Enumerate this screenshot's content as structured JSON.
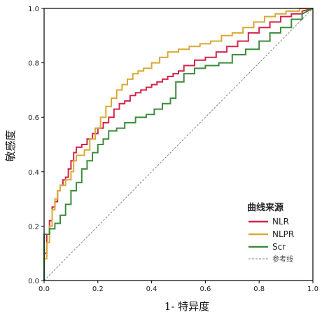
{
  "chart_data": {
    "type": "line",
    "title": "",
    "xlabel": "1- 特异度",
    "ylabel": "敏感度",
    "xlim": [
      0,
      1
    ],
    "ylim": [
      0,
      1
    ],
    "xticks": [
      "0.0",
      "0.2",
      "0.4",
      "0.6",
      "0.8",
      "1.0"
    ],
    "yticks": [
      "0.0",
      "0.2",
      "0.4",
      "0.6",
      "0.8",
      "1.0"
    ],
    "grid": false,
    "legend": {
      "title": "曲线来源",
      "placement": "bottom-right",
      "entries": [
        "NLR",
        "NLPR",
        "Scr",
        "参考线"
      ]
    },
    "series": [
      {
        "name": "NLR",
        "color": "#d4244a",
        "x": [
          0,
          0,
          0.01,
          0.01,
          0.02,
          0.02,
          0.03,
          0.03,
          0.04,
          0.04,
          0.05,
          0.05,
          0.06,
          0.06,
          0.07,
          0.07,
          0.08,
          0.08,
          0.09,
          0.09,
          0.1,
          0.1,
          0.11,
          0.11,
          0.12,
          0.12,
          0.14,
          0.14,
          0.16,
          0.16,
          0.18,
          0.18,
          0.2,
          0.2,
          0.22,
          0.22,
          0.24,
          0.24,
          0.26,
          0.26,
          0.28,
          0.28,
          0.3,
          0.3,
          0.32,
          0.32,
          0.34,
          0.34,
          0.36,
          0.36,
          0.38,
          0.38,
          0.4,
          0.4,
          0.42,
          0.42,
          0.44,
          0.44,
          0.46,
          0.46,
          0.48,
          0.48,
          0.5,
          0.5,
          0.52,
          0.52,
          0.56,
          0.56,
          0.6,
          0.6,
          0.64,
          0.64,
          0.68,
          0.68,
          0.72,
          0.72,
          0.76,
          0.76,
          0.8,
          0.8,
          0.84,
          0.84,
          0.88,
          0.88,
          0.92,
          0.92,
          0.96,
          0.96,
          1.0
        ],
        "y": [
          0,
          0.1,
          0.1,
          0.17,
          0.17,
          0.22,
          0.22,
          0.27,
          0.27,
          0.29,
          0.29,
          0.33,
          0.33,
          0.35,
          0.35,
          0.37,
          0.37,
          0.38,
          0.38,
          0.41,
          0.41,
          0.44,
          0.44,
          0.47,
          0.47,
          0.49,
          0.49,
          0.5,
          0.5,
          0.52,
          0.52,
          0.54,
          0.54,
          0.56,
          0.56,
          0.58,
          0.58,
          0.6,
          0.6,
          0.63,
          0.63,
          0.65,
          0.65,
          0.66,
          0.66,
          0.68,
          0.68,
          0.69,
          0.69,
          0.7,
          0.7,
          0.71,
          0.71,
          0.72,
          0.72,
          0.73,
          0.73,
          0.74,
          0.74,
          0.75,
          0.75,
          0.76,
          0.76,
          0.77,
          0.77,
          0.79,
          0.79,
          0.81,
          0.81,
          0.82,
          0.82,
          0.84,
          0.84,
          0.86,
          0.86,
          0.88,
          0.88,
          0.91,
          0.91,
          0.93,
          0.93,
          0.95,
          0.95,
          0.97,
          0.97,
          0.98,
          0.98,
          0.99,
          1.0
        ]
      },
      {
        "name": "NLPR",
        "color": "#d9a935",
        "x": [
          0,
          0,
          0.01,
          0.01,
          0.02,
          0.02,
          0.03,
          0.03,
          0.04,
          0.04,
          0.05,
          0.05,
          0.06,
          0.06,
          0.08,
          0.08,
          0.1,
          0.1,
          0.11,
          0.11,
          0.12,
          0.12,
          0.15,
          0.15,
          0.17,
          0.17,
          0.19,
          0.19,
          0.21,
          0.21,
          0.23,
          0.23,
          0.25,
          0.25,
          0.27,
          0.27,
          0.29,
          0.29,
          0.31,
          0.31,
          0.33,
          0.33,
          0.35,
          0.35,
          0.37,
          0.37,
          0.4,
          0.4,
          0.43,
          0.43,
          0.46,
          0.46,
          0.5,
          0.5,
          0.54,
          0.54,
          0.58,
          0.58,
          0.62,
          0.62,
          0.66,
          0.66,
          0.7,
          0.7,
          0.74,
          0.74,
          0.78,
          0.78,
          0.82,
          0.82,
          0.86,
          0.86,
          0.9,
          0.9,
          0.95,
          0.95,
          1.0
        ],
        "y": [
          0,
          0.08,
          0.08,
          0.14,
          0.14,
          0.2,
          0.2,
          0.26,
          0.26,
          0.3,
          0.3,
          0.33,
          0.33,
          0.35,
          0.35,
          0.37,
          0.37,
          0.4,
          0.4,
          0.44,
          0.44,
          0.46,
          0.46,
          0.48,
          0.48,
          0.52,
          0.52,
          0.56,
          0.56,
          0.6,
          0.6,
          0.64,
          0.64,
          0.67,
          0.67,
          0.7,
          0.7,
          0.72,
          0.72,
          0.74,
          0.74,
          0.76,
          0.76,
          0.77,
          0.77,
          0.78,
          0.78,
          0.8,
          0.8,
          0.82,
          0.82,
          0.84,
          0.84,
          0.85,
          0.85,
          0.86,
          0.86,
          0.87,
          0.87,
          0.88,
          0.88,
          0.9,
          0.9,
          0.91,
          0.91,
          0.93,
          0.93,
          0.95,
          0.95,
          0.97,
          0.97,
          0.98,
          0.98,
          0.99,
          0.99,
          1.0,
          1.0
        ]
      },
      {
        "name": "Scr",
        "color": "#3d8c3d",
        "x": [
          0,
          0,
          0.02,
          0.02,
          0.04,
          0.04,
          0.06,
          0.06,
          0.08,
          0.08,
          0.1,
          0.1,
          0.12,
          0.12,
          0.14,
          0.14,
          0.16,
          0.16,
          0.18,
          0.18,
          0.2,
          0.2,
          0.22,
          0.22,
          0.24,
          0.24,
          0.27,
          0.27,
          0.3,
          0.3,
          0.34,
          0.34,
          0.38,
          0.38,
          0.41,
          0.41,
          0.44,
          0.44,
          0.47,
          0.47,
          0.49,
          0.49,
          0.52,
          0.52,
          0.56,
          0.56,
          0.6,
          0.6,
          0.65,
          0.65,
          0.7,
          0.7,
          0.75,
          0.75,
          0.8,
          0.8,
          0.84,
          0.84,
          0.88,
          0.88,
          0.92,
          0.92,
          0.96,
          0.96,
          1.0
        ],
        "y": [
          0,
          0.17,
          0.17,
          0.19,
          0.19,
          0.21,
          0.21,
          0.24,
          0.24,
          0.28,
          0.28,
          0.33,
          0.33,
          0.36,
          0.36,
          0.41,
          0.41,
          0.44,
          0.44,
          0.47,
          0.47,
          0.5,
          0.5,
          0.52,
          0.52,
          0.55,
          0.55,
          0.56,
          0.56,
          0.58,
          0.58,
          0.6,
          0.6,
          0.61,
          0.61,
          0.63,
          0.63,
          0.65,
          0.65,
          0.67,
          0.67,
          0.73,
          0.73,
          0.76,
          0.76,
          0.78,
          0.78,
          0.79,
          0.79,
          0.8,
          0.8,
          0.83,
          0.83,
          0.85,
          0.85,
          0.88,
          0.88,
          0.91,
          0.91,
          0.93,
          0.93,
          0.96,
          0.96,
          0.98,
          1.0
        ]
      }
    ],
    "reference_line": {
      "name": "参考线",
      "x": [
        0,
        1
      ],
      "y": [
        0,
        1
      ],
      "style": "dashed",
      "color": "#888888"
    }
  }
}
